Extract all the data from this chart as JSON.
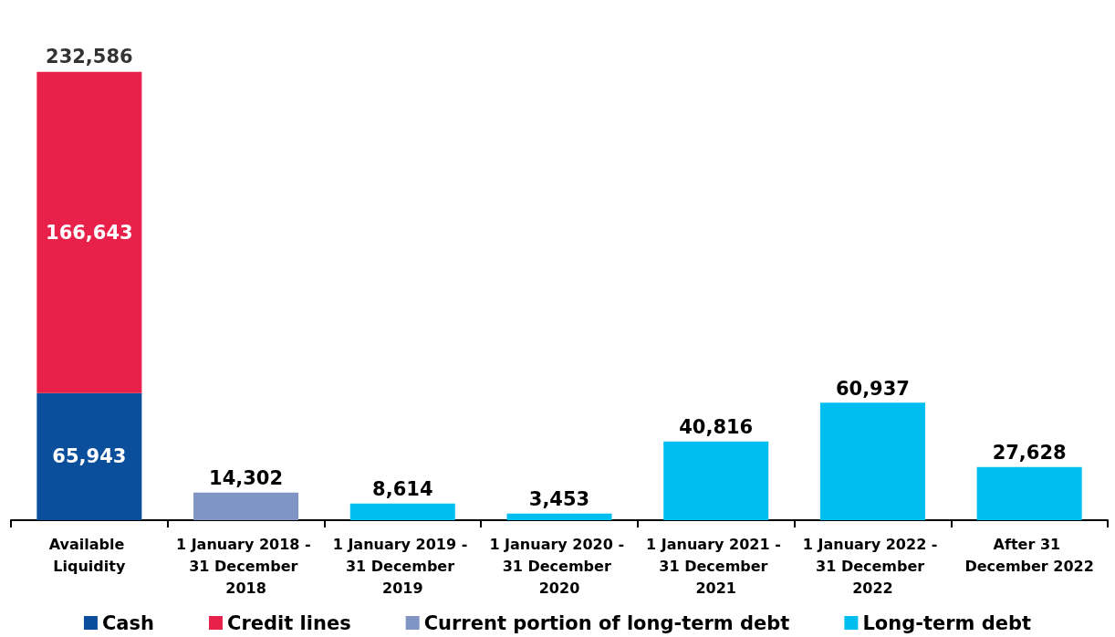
{
  "chart_data": {
    "type": "bar",
    "stacked": true,
    "categories": [
      "Available Liquidity",
      "1 January 2018 - 31 December 2018",
      "1 January 2019 - 31 December 2019",
      "1 January 2020 - 31 December 2020",
      "1 January 2021 - 31 December 2021",
      "1 January 2022 - 31 December 2022",
      "After 31 December 2022"
    ],
    "series": [
      {
        "name": "Cash",
        "color": "#0b4f9c",
        "values": [
          65943,
          null,
          null,
          null,
          null,
          null,
          null
        ],
        "value_labels": [
          "65,943",
          null,
          null,
          null,
          null,
          null,
          null
        ]
      },
      {
        "name": "Credit lines",
        "color": "#e8214a",
        "values": [
          166643,
          null,
          null,
          null,
          null,
          null,
          null
        ],
        "value_labels": [
          "166,643",
          null,
          null,
          null,
          null,
          null,
          null
        ]
      },
      {
        "name": "Current portion of long-term debt",
        "color": "#8095c4",
        "values": [
          null,
          14302,
          null,
          null,
          null,
          null,
          null
        ],
        "value_labels": [
          null,
          "14,302",
          null,
          null,
          null,
          null,
          null
        ]
      },
      {
        "name": "Long-term debt",
        "color": "#00bff0",
        "values": [
          null,
          null,
          8614,
          3453,
          40816,
          60937,
          27628
        ],
        "value_labels": [
          null,
          null,
          "8,614",
          "3,453",
          "40,816",
          "60,937",
          "27,628"
        ]
      }
    ],
    "totals": [
      "232,586",
      null,
      null,
      null,
      null,
      null,
      null
    ],
    "legend": "bottom"
  }
}
